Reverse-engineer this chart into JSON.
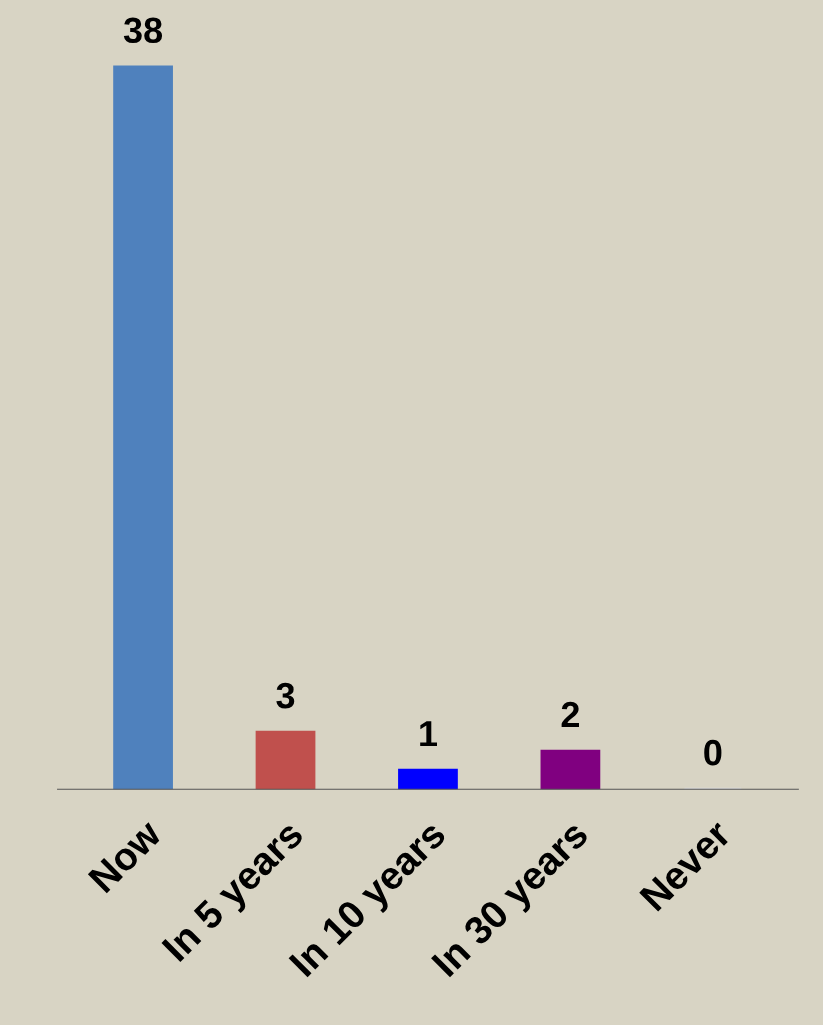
{
  "chart_data": {
    "type": "bar",
    "categories": [
      "Now",
      "In 5 years",
      "In 10 years",
      "In 30 years",
      "Never"
    ],
    "values": [
      38,
      3,
      1,
      2,
      0
    ],
    "colors": [
      "#4f81bd",
      "#c0504d",
      "#0000ff",
      "#800080",
      "#d9d9d9"
    ],
    "data_labels": true,
    "grid": false,
    "legend": false
  }
}
